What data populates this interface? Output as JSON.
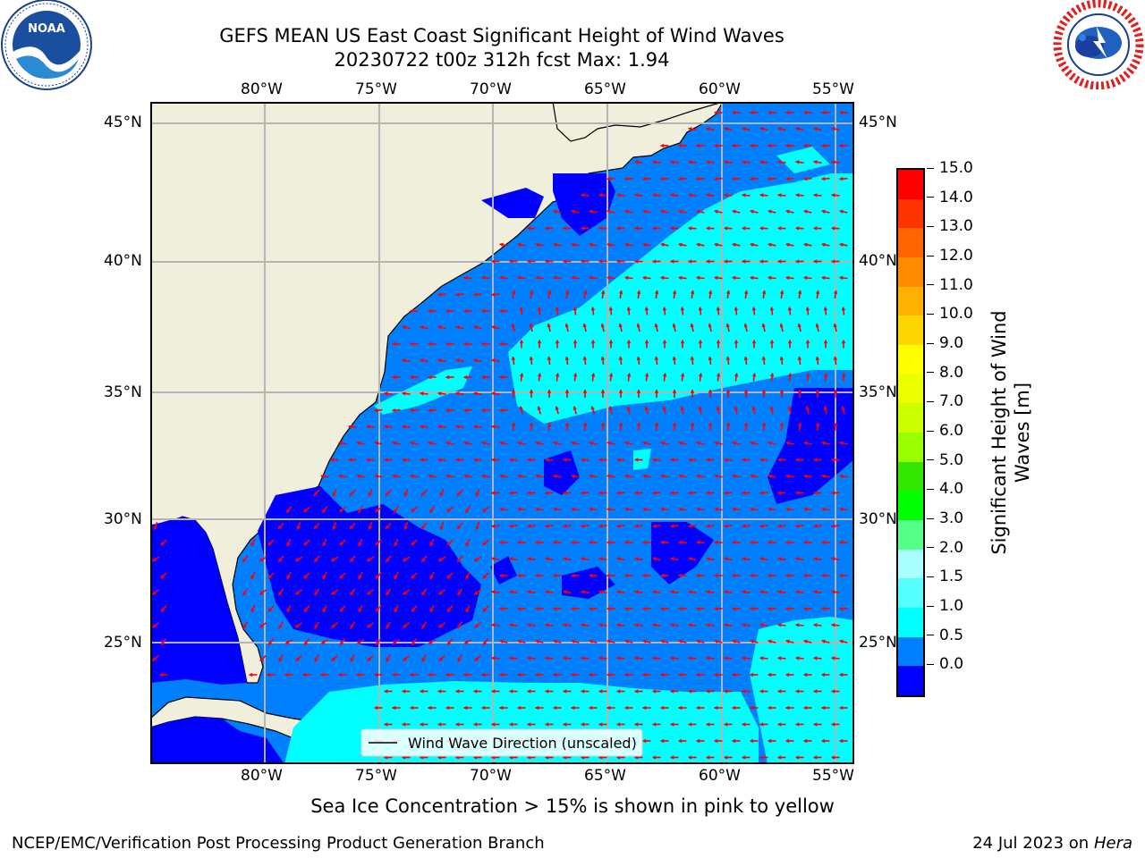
{
  "header": {
    "title_line1": "GEFS MEAN US East Coast Significant Height of Wind Waves",
    "title_line2": "20230722 t00z 312h fcst   Max: 1.94"
  },
  "logos": {
    "left_name": "noaa-logo",
    "left_text": "NOAA",
    "left_ring_text": "NATIONAL OCEANIC AND ATMOSPHERIC ADMINISTRATION · U.S. DEPARTMENT OF COMMERCE",
    "right_name": "nws-logo",
    "right_ring_text": "NATIONAL WEATHER SERVICE"
  },
  "map": {
    "lon_labels": [
      "80°W",
      "75°W",
      "70°W",
      "65°W",
      "60°W",
      "55°W"
    ],
    "lat_labels": [
      "45°N",
      "40°N",
      "35°N",
      "30°N",
      "25°N"
    ],
    "legend_label": "Wind Wave Direction (unscaled)",
    "colors": {
      "land": "#efefdc",
      "level_0_0_5": "#0000ff",
      "level_0_5_1_0": "#0080ff",
      "level_1_0_1_5": "#00ffff",
      "arrows": "#ff0000",
      "grid": "#b4b4b4"
    }
  },
  "colorbar": {
    "label": "Significant Height of Wind Waves [m]",
    "ticks": [
      "15.0",
      "14.0",
      "13.0",
      "12.0",
      "11.0",
      "10.0",
      "9.0",
      "8.0",
      "7.0",
      "6.0",
      "5.0",
      "4.0",
      "3.0",
      "2.0",
      "1.5",
      "1.0",
      "0.5",
      "0.0"
    ],
    "colors": [
      "#ff0000",
      "#ff3300",
      "#ff6600",
      "#ff8c00",
      "#ffb000",
      "#ffd700",
      "#ffff00",
      "#ecff00",
      "#ccff00",
      "#99ff00",
      "#33e600",
      "#00ff00",
      "#55ff88",
      "#aaffff",
      "#55ffff",
      "#00ffff",
      "#0080ff",
      "#0000ff"
    ]
  },
  "footer": {
    "caption": "Sea Ice Concentration > 15% is shown in pink to yellow",
    "left": "NCEP/EMC/Verification Post Processing Product Generation Branch",
    "right_prefix": "24 Jul 2023 on ",
    "right_machine": "Hera"
  }
}
